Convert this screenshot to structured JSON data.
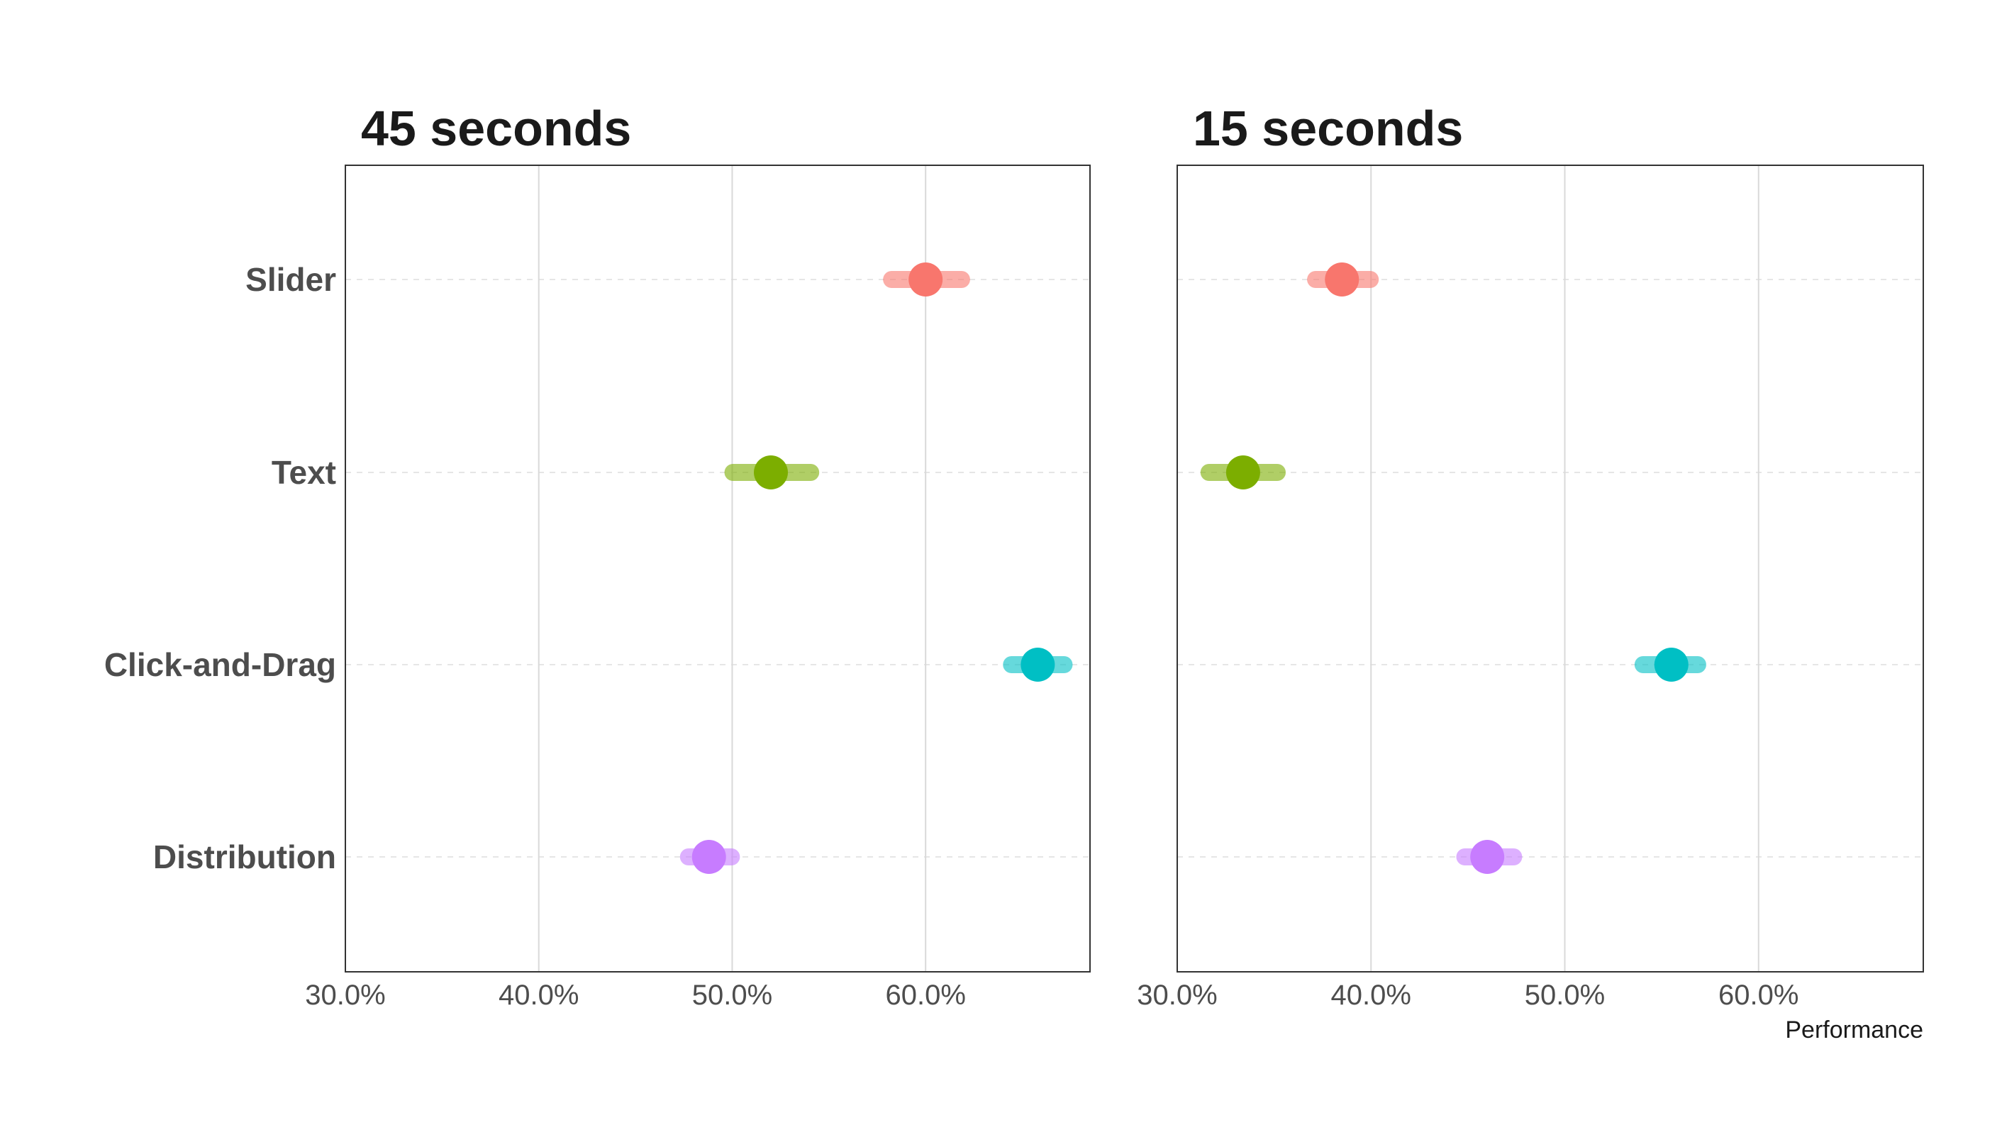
{
  "chart_data": {
    "type": "scatter",
    "subtype": "dot-interval",
    "categories": [
      "Slider",
      "Text",
      "Click-and-Drag",
      "Distribution"
    ],
    "category_colors": {
      "Slider": "#F8766D",
      "Text": "#7CAE00",
      "Click-and-Drag": "#00BFC4",
      "Distribution": "#C77CFF"
    },
    "xlabel": "Performance",
    "xlim": [
      0.3,
      0.685
    ],
    "x_ticks": [
      0.3,
      0.4,
      0.5,
      0.6
    ],
    "x_tick_labels": [
      "30.0%",
      "40.0%",
      "50.0%",
      "60.0%"
    ],
    "grid": {
      "vertical_major": true,
      "horizontal_dashed": true
    },
    "legend": "none",
    "panels": [
      {
        "title": "45 seconds",
        "points": [
          {
            "category": "Slider",
            "estimate": 0.6,
            "low": 0.578,
            "high": 0.623
          },
          {
            "category": "Text",
            "estimate": 0.52,
            "low": 0.496,
            "high": 0.545
          },
          {
            "category": "Click-and-Drag",
            "estimate": 0.658,
            "low": 0.64,
            "high": 0.676
          },
          {
            "category": "Distribution",
            "estimate": 0.488,
            "low": 0.473,
            "high": 0.504
          }
        ]
      },
      {
        "title": "15 seconds",
        "points": [
          {
            "category": "Slider",
            "estimate": 0.385,
            "low": 0.367,
            "high": 0.404
          },
          {
            "category": "Text",
            "estimate": 0.334,
            "low": 0.312,
            "high": 0.356
          },
          {
            "category": "Click-and-Drag",
            "estimate": 0.555,
            "low": 0.536,
            "high": 0.573
          },
          {
            "category": "Distribution",
            "estimate": 0.46,
            "low": 0.444,
            "high": 0.478
          }
        ]
      }
    ]
  }
}
